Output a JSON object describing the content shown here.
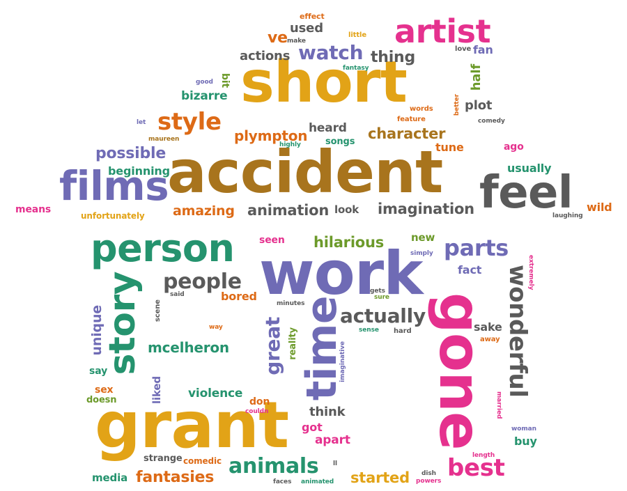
{
  "colors": {
    "purple": "#6f6bb5",
    "gold": "#e2a317",
    "brown": "#a8741d",
    "gray": "#5a5a5a",
    "teal": "#25936e",
    "green": "#6c9a2a",
    "orange": "#dd6a16",
    "pink": "#e5318e"
  },
  "words": [
    {
      "id": "short",
      "text": "short",
      "color": "gold"
    },
    {
      "id": "accident",
      "text": "accident",
      "color": "brown"
    },
    {
      "id": "films",
      "text": "films",
      "color": "purple"
    },
    {
      "id": "feel",
      "text": "feel",
      "color": "gray"
    },
    {
      "id": "artist",
      "text": "artist",
      "color": "pink"
    },
    {
      "id": "work",
      "text": "work",
      "color": "purple"
    },
    {
      "id": "grant",
      "text": "grant",
      "color": "gold"
    },
    {
      "id": "person",
      "text": "person",
      "color": "teal"
    },
    {
      "id": "story",
      "text": "story",
      "color": "teal"
    },
    {
      "id": "gone",
      "text": "gone",
      "color": "pink"
    },
    {
      "id": "time",
      "text": "time",
      "color": "purple"
    },
    {
      "id": "wonderful",
      "text": "wonderful",
      "color": "gray"
    },
    {
      "id": "great",
      "text": "great",
      "color": "purple"
    },
    {
      "id": "style",
      "text": "style",
      "color": "orange"
    },
    {
      "id": "watch",
      "text": "watch",
      "color": "purple"
    },
    {
      "id": "animals",
      "text": "animals",
      "color": "teal"
    },
    {
      "id": "parts",
      "text": "parts",
      "color": "purple"
    },
    {
      "id": "best",
      "text": "best",
      "color": "pink"
    },
    {
      "id": "people",
      "text": "people",
      "color": "gray"
    },
    {
      "id": "actually",
      "text": "actually",
      "color": "gray"
    },
    {
      "id": "possible",
      "text": "possible",
      "color": "purple"
    },
    {
      "id": "imagination",
      "text": "imagination",
      "color": "gray"
    },
    {
      "id": "animation",
      "text": "animation",
      "color": "gray"
    },
    {
      "id": "character",
      "text": "character",
      "color": "brown"
    },
    {
      "id": "plympton",
      "text": "plympton",
      "color": "orange"
    },
    {
      "id": "amazing",
      "text": "amazing",
      "color": "orange"
    },
    {
      "id": "fantasies",
      "text": "fantasies",
      "color": "orange"
    },
    {
      "id": "started",
      "text": "started",
      "color": "gold"
    },
    {
      "id": "mcelheron",
      "text": "mcelheron",
      "color": "teal"
    },
    {
      "id": "hilarious",
      "text": "hilarious",
      "color": "green"
    },
    {
      "id": "thing",
      "text": "thing",
      "color": "gray"
    },
    {
      "id": "actions",
      "text": "actions",
      "color": "gray"
    },
    {
      "id": "used",
      "text": "used",
      "color": "gray"
    },
    {
      "id": "ve",
      "text": "ve",
      "color": "orange"
    },
    {
      "id": "bizarre",
      "text": "bizarre",
      "color": "teal"
    },
    {
      "id": "heard",
      "text": "heard",
      "color": "gray"
    },
    {
      "id": "beginning",
      "text": "beginning",
      "color": "teal"
    },
    {
      "id": "usually",
      "text": "usually",
      "color": "teal"
    },
    {
      "id": "violence",
      "text": "violence",
      "color": "teal"
    },
    {
      "id": "think",
      "text": "think",
      "color": "gray"
    },
    {
      "id": "apart",
      "text": "apart",
      "color": "pink"
    },
    {
      "id": "got",
      "text": "got",
      "color": "pink"
    },
    {
      "id": "unique",
      "text": "unique",
      "color": "purple"
    },
    {
      "id": "bored",
      "text": "bored",
      "color": "orange"
    },
    {
      "id": "half",
      "text": "half",
      "color": "green"
    },
    {
      "id": "plot",
      "text": "plot",
      "color": "gray"
    },
    {
      "id": "tune",
      "text": "tune",
      "color": "orange"
    },
    {
      "id": "fan",
      "text": "fan",
      "color": "purple"
    },
    {
      "id": "wild",
      "text": "wild",
      "color": "orange"
    },
    {
      "id": "means",
      "text": "means",
      "color": "pink"
    },
    {
      "id": "look",
      "text": "look",
      "color": "gray"
    },
    {
      "id": "fact",
      "text": "fact",
      "color": "purple"
    },
    {
      "id": "sake",
      "text": "sake",
      "color": "gray"
    },
    {
      "id": "buy",
      "text": "buy",
      "color": "teal"
    },
    {
      "id": "new",
      "text": "new",
      "color": "green"
    },
    {
      "id": "seen",
      "text": "seen",
      "color": "pink"
    },
    {
      "id": "ago",
      "text": "ago",
      "color": "pink"
    },
    {
      "id": "bit",
      "text": "bit",
      "color": "green"
    },
    {
      "id": "media",
      "text": "media",
      "color": "teal"
    },
    {
      "id": "liked",
      "text": "liked",
      "color": "purple"
    },
    {
      "id": "say",
      "text": "say",
      "color": "teal"
    },
    {
      "id": "sex",
      "text": "sex",
      "color": "orange"
    },
    {
      "id": "doesn",
      "text": "doesn",
      "color": "green"
    },
    {
      "id": "don",
      "text": "don",
      "color": "orange"
    },
    {
      "id": "reality",
      "text": "reality",
      "color": "green"
    },
    {
      "id": "songs",
      "text": "songs",
      "color": "teal"
    },
    {
      "id": "strange",
      "text": "strange",
      "color": "gray"
    },
    {
      "id": "comedic",
      "text": "comedic",
      "color": "orange"
    },
    {
      "id": "unfortunately",
      "text": "unfortunately",
      "color": "gold"
    },
    {
      "id": "effect",
      "text": "effect",
      "color": "orange"
    },
    {
      "id": "little",
      "text": "little",
      "color": "gold"
    },
    {
      "id": "make",
      "text": "make",
      "color": "gray"
    },
    {
      "id": "love",
      "text": "love",
      "color": "gray"
    },
    {
      "id": "fantasy",
      "text": "fantasy",
      "color": "teal"
    },
    {
      "id": "good",
      "text": "good",
      "color": "purple"
    },
    {
      "id": "let",
      "text": "let",
      "color": "purple"
    },
    {
      "id": "maureen",
      "text": "maureen",
      "color": "brown"
    },
    {
      "id": "highly",
      "text": "highly",
      "color": "teal"
    },
    {
      "id": "words",
      "text": "words",
      "color": "orange"
    },
    {
      "id": "feature",
      "text": "feature",
      "color": "orange"
    },
    {
      "id": "better",
      "text": "better",
      "color": "orange"
    },
    {
      "id": "comedy",
      "text": "comedy",
      "color": "gray"
    },
    {
      "id": "laughing",
      "text": "laughing",
      "color": "gray"
    },
    {
      "id": "simply",
      "text": "simply",
      "color": "purple"
    },
    {
      "id": "extremely",
      "text": "extremely",
      "color": "pink"
    },
    {
      "id": "gets",
      "text": "gets",
      "color": "gray"
    },
    {
      "id": "sure",
      "text": "sure",
      "color": "green"
    },
    {
      "id": "minutes",
      "text": "minutes",
      "color": "gray"
    },
    {
      "id": "said",
      "text": "said",
      "color": "gray"
    },
    {
      "id": "scene",
      "text": "scene",
      "color": "gray"
    },
    {
      "id": "way",
      "text": "way",
      "color": "orange"
    },
    {
      "id": "sense",
      "text": "sense",
      "color": "teal"
    },
    {
      "id": "hard",
      "text": "hard",
      "color": "gray"
    },
    {
      "id": "imaginative",
      "text": "imaginative",
      "color": "purple"
    },
    {
      "id": "away",
      "text": "away",
      "color": "orange"
    },
    {
      "id": "married",
      "text": "married",
      "color": "pink"
    },
    {
      "id": "woman",
      "text": "woman",
      "color": "purple"
    },
    {
      "id": "couldn",
      "text": "couldn",
      "color": "pink"
    },
    {
      "id": "length",
      "text": "length",
      "color": "pink"
    },
    {
      "id": "dish",
      "text": "dish",
      "color": "gray"
    },
    {
      "id": "powers",
      "text": "powers",
      "color": "pink"
    },
    {
      "id": "faces",
      "text": "faces",
      "color": "gray"
    },
    {
      "id": "animated",
      "text": "animated",
      "color": "teal"
    },
    {
      "id": "ll",
      "text": "ll",
      "color": "gray"
    }
  ]
}
